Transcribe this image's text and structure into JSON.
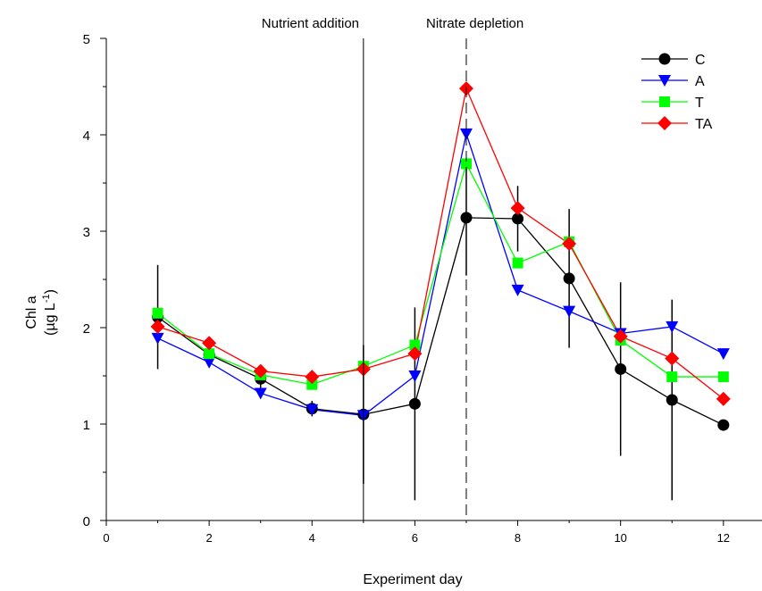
{
  "chart_data": {
    "type": "line",
    "xlabel": "Experiment day",
    "ylabel_line1": "Chl a",
    "ylabel_line2_prefix": "(µg L",
    "ylabel_line2_sup": "-1",
    "ylabel_line2_suffix": ")",
    "xlim": [
      0,
      12.75
    ],
    "ylim": [
      0,
      5
    ],
    "xticks": [
      0,
      2,
      4,
      6,
      8,
      10,
      12
    ],
    "yticks": [
      0,
      1,
      2,
      3,
      4,
      5
    ],
    "grid": false,
    "legend_position": "top-right",
    "annotations": [
      {
        "text": "Nutrient addition",
        "x": 5,
        "line_style": "solid"
      },
      {
        "text": "Nitrate depletion",
        "x": 7,
        "line_style": "dashed"
      }
    ],
    "x": [
      1,
      2,
      3,
      4,
      5,
      6,
      7,
      8,
      9,
      10,
      11,
      12
    ],
    "series": [
      {
        "name": "C",
        "color": "#000000",
        "marker": "circle",
        "values": [
          2.11,
          1.72,
          1.47,
          1.16,
          1.1,
          1.21,
          3.14,
          3.13,
          2.51,
          1.57,
          1.25,
          0.99
        ],
        "error": [
          0.54,
          0.12,
          0.12,
          0.08,
          0.72,
          1.0,
          0.6,
          0.34,
          0.72,
          0.9,
          1.04,
          0.04
        ]
      },
      {
        "name": "A",
        "color": "#0000ff",
        "marker": "triangle-down",
        "values": [
          1.89,
          1.64,
          1.32,
          1.15,
          1.09,
          1.5,
          4.01,
          2.39,
          2.17,
          1.94,
          2.01,
          1.73
        ]
      },
      {
        "name": "T",
        "color": "#00ff00",
        "marker": "square",
        "values": [
          2.15,
          1.73,
          1.51,
          1.41,
          1.6,
          1.82,
          3.7,
          2.67,
          2.89,
          1.87,
          1.49,
          1.49
        ]
      },
      {
        "name": "TA",
        "color": "#ff0000",
        "marker": "diamond",
        "values": [
          2.01,
          1.84,
          1.55,
          1.49,
          1.57,
          1.73,
          4.48,
          3.24,
          2.87,
          1.91,
          1.68,
          1.26
        ]
      }
    ]
  }
}
